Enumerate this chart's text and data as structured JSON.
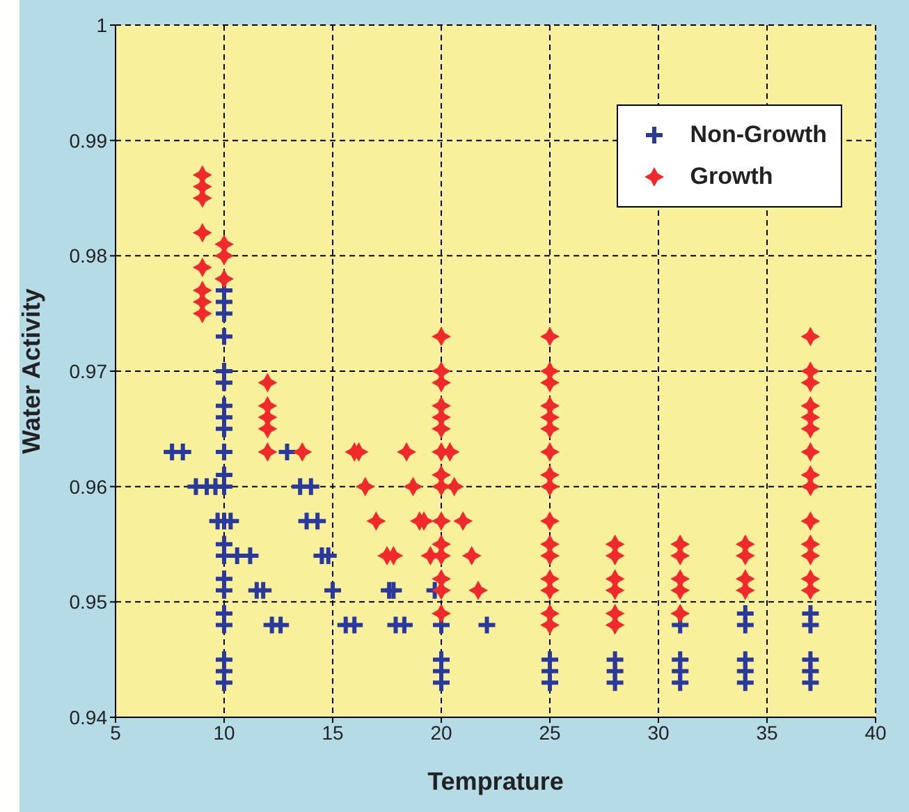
{
  "chart_data": {
    "type": "scatter",
    "xlabel": "Temprature",
    "ylabel": "Water Activity",
    "xlim": [
      5,
      40
    ],
    "xticks": [
      5,
      10,
      15,
      20,
      25,
      30,
      35,
      40
    ],
    "ylim": [
      0.94,
      1
    ],
    "yticks": [
      0.94,
      0.95,
      0.96,
      0.97,
      0.98,
      0.99,
      1
    ],
    "grid": true,
    "legend": "top right",
    "series": [
      {
        "name": "Non-Growth",
        "color": "#2a3a9c",
        "marker": "cross",
        "x": [
          10,
          10,
          10,
          10,
          10,
          10,
          10,
          10,
          10,
          10,
          10,
          10,
          10,
          10,
          10,
          10,
          10,
          10,
          10,
          10,
          10,
          10,
          7.6,
          8.1,
          8.7,
          9.2,
          9.6,
          9.7,
          10.3,
          10.6,
          11.2,
          11.5,
          11.8,
          12.2,
          12.6,
          12.9,
          13.5,
          14,
          13.8,
          14.3,
          14.5,
          14.8,
          15,
          15.6,
          16,
          17.6,
          17.8,
          17.9,
          18.3,
          19.7,
          20,
          20,
          20,
          20,
          22.1,
          25,
          25,
          25,
          28,
          28,
          28,
          31,
          31,
          31,
          31,
          34,
          34,
          34,
          34,
          34,
          37,
          37,
          37,
          37,
          37
        ],
        "values": [
          0.943,
          0.944,
          0.945,
          0.948,
          0.949,
          0.951,
          0.952,
          0.954,
          0.955,
          0.957,
          0.96,
          0.961,
          0.963,
          0.965,
          0.966,
          0.967,
          0.969,
          0.97,
          0.973,
          0.975,
          0.976,
          0.977,
          0.963,
          0.963,
          0.96,
          0.96,
          0.96,
          0.957,
          0.957,
          0.954,
          0.954,
          0.951,
          0.951,
          0.948,
          0.948,
          0.963,
          0.96,
          0.96,
          0.957,
          0.957,
          0.954,
          0.954,
          0.951,
          0.948,
          0.948,
          0.951,
          0.951,
          0.948,
          0.948,
          0.951,
          0.948,
          0.943,
          0.944,
          0.945,
          0.948,
          0.943,
          0.944,
          0.945,
          0.943,
          0.944,
          0.945,
          0.943,
          0.944,
          0.945,
          0.948,
          0.943,
          0.944,
          0.945,
          0.948,
          0.949,
          0.943,
          0.944,
          0.945,
          0.948,
          0.949
        ]
      },
      {
        "name": "Growth",
        "color": "#f02a2a",
        "marker": "diamond",
        "x": [
          9,
          9,
          9,
          9,
          9,
          9,
          9,
          9,
          10,
          10,
          10,
          12,
          12,
          12,
          12,
          12,
          13.6,
          16,
          16.2,
          16.5,
          17,
          17.5,
          17.8,
          18.4,
          18.7,
          19,
          19.2,
          19.5,
          20,
          20,
          20,
          20,
          20,
          20,
          20,
          20,
          20,
          20,
          20,
          20,
          20,
          20,
          20,
          20.4,
          20.6,
          21,
          21.4,
          21.7,
          25,
          25,
          25,
          25,
          25,
          25,
          25,
          25,
          25,
          25,
          25,
          25,
          25,
          25,
          25,
          25,
          28,
          28,
          28,
          28,
          28,
          28,
          31,
          31,
          31,
          31,
          31,
          34,
          34,
          34,
          34,
          37,
          37,
          37,
          37,
          37,
          37,
          37,
          37,
          37,
          37,
          37,
          37,
          37,
          37
        ],
        "values": [
          0.975,
          0.976,
          0.977,
          0.979,
          0.982,
          0.985,
          0.986,
          0.987,
          0.978,
          0.98,
          0.981,
          0.963,
          0.965,
          0.966,
          0.967,
          0.969,
          0.963,
          0.963,
          0.963,
          0.96,
          0.957,
          0.954,
          0.954,
          0.963,
          0.96,
          0.957,
          0.957,
          0.954,
          0.949,
          0.951,
          0.952,
          0.954,
          0.955,
          0.957,
          0.96,
          0.961,
          0.963,
          0.965,
          0.966,
          0.967,
          0.969,
          0.97,
          0.973,
          0.963,
          0.96,
          0.957,
          0.954,
          0.951,
          0.948,
          0.949,
          0.951,
          0.952,
          0.954,
          0.955,
          0.957,
          0.96,
          0.961,
          0.963,
          0.965,
          0.966,
          0.967,
          0.969,
          0.97,
          0.973,
          0.948,
          0.949,
          0.951,
          0.952,
          0.954,
          0.955,
          0.949,
          0.951,
          0.952,
          0.954,
          0.955,
          0.951,
          0.952,
          0.954,
          0.955,
          0.951,
          0.952,
          0.954,
          0.955,
          0.957,
          0.96,
          0.961,
          0.963,
          0.965,
          0.966,
          0.967,
          0.969,
          0.97,
          0.973
        ]
      }
    ]
  }
}
